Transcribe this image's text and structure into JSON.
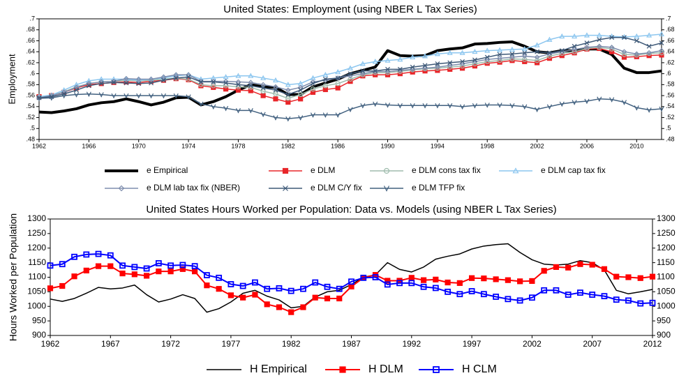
{
  "chart_data": [
    {
      "type": "line",
      "title": "United States: Employment (using NBER L Tax Series)",
      "ylabel": "Employment",
      "x": [
        1962,
        1963,
        1964,
        1965,
        1966,
        1967,
        1968,
        1969,
        1970,
        1971,
        1972,
        1973,
        1974,
        1975,
        1976,
        1977,
        1978,
        1979,
        1980,
        1981,
        1982,
        1983,
        1984,
        1985,
        1986,
        1987,
        1988,
        1989,
        1990,
        1991,
        1992,
        1993,
        1994,
        1995,
        1996,
        1997,
        1998,
        1999,
        2000,
        2001,
        2002,
        2003,
        2004,
        2005,
        2006,
        2007,
        2008,
        2009,
        2010,
        2011,
        2012
      ],
      "xlim": [
        1962,
        2012
      ],
      "xticks": [
        1962,
        1966,
        1970,
        1974,
        1978,
        1982,
        1986,
        1990,
        1994,
        1998,
        2002,
        2006,
        2010
      ],
      "ylim": [
        0.48,
        0.7
      ],
      "yticks": [
        {
          "value": 0.48,
          "label": ".48"
        },
        {
          "value": 0.5,
          "label": ".5"
        },
        {
          "value": 0.52,
          "label": ".52"
        },
        {
          "value": 0.54,
          "label": ".54"
        },
        {
          "value": 0.56,
          "label": ".56"
        },
        {
          "value": 0.58,
          "label": ".58"
        },
        {
          "value": 0.6,
          "label": ".6"
        },
        {
          "value": 0.62,
          "label": ".62"
        },
        {
          "value": 0.64,
          "label": ".64"
        },
        {
          "value": 0.66,
          "label": ".66"
        },
        {
          "value": 0.68,
          "label": ".68"
        },
        {
          "value": 0.7,
          "label": ".7"
        }
      ],
      "legend": "bottom",
      "series": [
        {
          "name": "e Empirical",
          "color": "#000000",
          "marker": "none",
          "linewidth": 4,
          "values": [
            0.53,
            0.529,
            0.532,
            0.536,
            0.543,
            0.547,
            0.549,
            0.554,
            0.549,
            0.543,
            0.548,
            0.556,
            0.557,
            0.543,
            0.549,
            0.558,
            0.57,
            0.58,
            0.576,
            0.575,
            0.562,
            0.562,
            0.576,
            0.583,
            0.59,
            0.6,
            0.606,
            0.612,
            0.642,
            0.633,
            0.632,
            0.633,
            0.642,
            0.645,
            0.647,
            0.654,
            0.655,
            0.657,
            0.658,
            0.65,
            0.64,
            0.638,
            0.642,
            0.642,
            0.645,
            0.645,
            0.635,
            0.61,
            0.602,
            0.602,
            0.605
          ]
        },
        {
          "name": "e DLM",
          "color": "#e8262a",
          "marker": "square",
          "linewidth": 1.5,
          "values": [
            0.558,
            0.56,
            0.566,
            0.574,
            0.58,
            0.582,
            0.584,
            0.585,
            0.584,
            0.586,
            0.588,
            0.591,
            0.589,
            0.578,
            0.575,
            0.572,
            0.57,
            0.569,
            0.56,
            0.554,
            0.548,
            0.554,
            0.566,
            0.571,
            0.574,
            0.586,
            0.596,
            0.598,
            0.598,
            0.6,
            0.603,
            0.605,
            0.606,
            0.608,
            0.61,
            0.614,
            0.619,
            0.621,
            0.624,
            0.622,
            0.62,
            0.628,
            0.633,
            0.638,
            0.645,
            0.646,
            0.64,
            0.63,
            0.631,
            0.633,
            0.634
          ]
        },
        {
          "name": "e DLM cons tax fix",
          "color": "#9fbcad",
          "marker": "circle",
          "linewidth": 1.5,
          "values": [
            0.557,
            0.56,
            0.567,
            0.576,
            0.582,
            0.585,
            0.586,
            0.588,
            0.587,
            0.588,
            0.59,
            0.592,
            0.59,
            0.58,
            0.578,
            0.578,
            0.576,
            0.575,
            0.568,
            0.563,
            0.555,
            0.562,
            0.572,
            0.578,
            0.582,
            0.59,
            0.598,
            0.602,
            0.602,
            0.604,
            0.607,
            0.609,
            0.61,
            0.612,
            0.614,
            0.618,
            0.622,
            0.624,
            0.627,
            0.626,
            0.624,
            0.632,
            0.637,
            0.64,
            0.646,
            0.648,
            0.645,
            0.635,
            0.634,
            0.637,
            0.638
          ]
        },
        {
          "name": "e DLM cap tax fix",
          "color": "#8cc6ef",
          "marker": "triangle",
          "linewidth": 1.5,
          "values": [
            0.558,
            0.561,
            0.57,
            0.58,
            0.587,
            0.59,
            0.59,
            0.59,
            0.588,
            0.59,
            0.592,
            0.596,
            0.598,
            0.59,
            0.592,
            0.594,
            0.596,
            0.596,
            0.592,
            0.588,
            0.58,
            0.582,
            0.592,
            0.598,
            0.603,
            0.61,
            0.618,
            0.622,
            0.624,
            0.626,
            0.63,
            0.632,
            0.636,
            0.638,
            0.638,
            0.64,
            0.642,
            0.643,
            0.644,
            0.645,
            0.652,
            0.662,
            0.668,
            0.668,
            0.67,
            0.67,
            0.668,
            0.667,
            0.668,
            0.67,
            0.672
          ]
        },
        {
          "name": "e DLM lab tax fix (NBER)",
          "color": "#7e8dad",
          "marker": "diamond",
          "linewidth": 1.5,
          "values": [
            0.556,
            0.56,
            0.566,
            0.575,
            0.582,
            0.585,
            0.586,
            0.591,
            0.59,
            0.59,
            0.594,
            0.598,
            0.598,
            0.586,
            0.586,
            0.586,
            0.585,
            0.584,
            0.58,
            0.576,
            0.57,
            0.575,
            0.585,
            0.588,
            0.592,
            0.596,
            0.6,
            0.604,
            0.604,
            0.606,
            0.608,
            0.61,
            0.612,
            0.615,
            0.618,
            0.622,
            0.626,
            0.628,
            0.63,
            0.632,
            0.63,
            0.636,
            0.64,
            0.644,
            0.648,
            0.65,
            0.648,
            0.64,
            0.636,
            0.638,
            0.642
          ]
        },
        {
          "name": "e DLM C/Y fix",
          "color": "#3d5877",
          "marker": "x",
          "linewidth": 1.5,
          "values": [
            0.556,
            0.558,
            0.563,
            0.57,
            0.578,
            0.582,
            0.584,
            0.583,
            0.582,
            0.583,
            0.588,
            0.592,
            0.594,
            0.585,
            0.585,
            0.583,
            0.58,
            0.578,
            0.574,
            0.57,
            0.562,
            0.57,
            0.582,
            0.59,
            0.592,
            0.6,
            0.605,
            0.605,
            0.608,
            0.608,
            0.612,
            0.615,
            0.618,
            0.62,
            0.622,
            0.625,
            0.63,
            0.635,
            0.636,
            0.638,
            0.64,
            0.638,
            0.642,
            0.65,
            0.656,
            0.662,
            0.666,
            0.666,
            0.66,
            0.65,
            0.656
          ]
        },
        {
          "name": "e DLM TFP fix",
          "color": "#41607f",
          "marker": "v",
          "linewidth": 1.5,
          "values": [
            0.555,
            0.556,
            0.56,
            0.562,
            0.563,
            0.562,
            0.56,
            0.56,
            0.56,
            0.56,
            0.56,
            0.56,
            0.558,
            0.545,
            0.54,
            0.537,
            0.533,
            0.533,
            0.526,
            0.52,
            0.518,
            0.52,
            0.525,
            0.525,
            0.525,
            0.535,
            0.542,
            0.545,
            0.543,
            0.542,
            0.542,
            0.542,
            0.542,
            0.542,
            0.54,
            0.542,
            0.543,
            0.543,
            0.542,
            0.54,
            0.535,
            0.54,
            0.545,
            0.548,
            0.55,
            0.554,
            0.553,
            0.548,
            0.538,
            0.534,
            0.536
          ]
        }
      ]
    },
    {
      "type": "line",
      "title": "United States Hours Worked per Population: Data vs. Models (using NBER L Tax Series)",
      "ylabel": "Hours Worked per Population",
      "x": [
        1962,
        1963,
        1964,
        1965,
        1966,
        1967,
        1968,
        1969,
        1970,
        1971,
        1972,
        1973,
        1974,
        1975,
        1976,
        1977,
        1978,
        1979,
        1980,
        1981,
        1982,
        1983,
        1984,
        1985,
        1986,
        1987,
        1988,
        1989,
        1990,
        1991,
        1992,
        1993,
        1994,
        1995,
        1996,
        1997,
        1998,
        1999,
        2000,
        2001,
        2002,
        2003,
        2004,
        2005,
        2006,
        2007,
        2008,
        2009,
        2010,
        2011,
        2012
      ],
      "xlim": [
        1962,
        2012
      ],
      "xticks": [
        1962,
        1967,
        1972,
        1977,
        1982,
        1987,
        1992,
        1997,
        2002,
        2007,
        2012
      ],
      "ylim": [
        900,
        1300
      ],
      "yticks": [
        900,
        950,
        1000,
        1050,
        1100,
        1150,
        1200,
        1250,
        1300
      ],
      "legend": "bottom",
      "series": [
        {
          "name": "H Empirical",
          "color": "#000000",
          "marker": "none",
          "linewidth": 1.5,
          "values": [
            1025,
            1017,
            1027,
            1045,
            1065,
            1060,
            1063,
            1073,
            1040,
            1015,
            1025,
            1040,
            1027,
            980,
            992,
            1015,
            1045,
            1055,
            1035,
            1022,
            995,
            1000,
            1032,
            1050,
            1055,
            1075,
            1100,
            1108,
            1150,
            1127,
            1118,
            1135,
            1162,
            1172,
            1180,
            1197,
            1207,
            1212,
            1215,
            1185,
            1160,
            1145,
            1142,
            1145,
            1157,
            1150,
            1125,
            1055,
            1043,
            1050,
            1058
          ]
        },
        {
          "name": "H DLM",
          "color": "#ff0000",
          "marker": "square",
          "linewidth": 2,
          "values": [
            1062,
            1070,
            1103,
            1123,
            1138,
            1138,
            1113,
            1110,
            1105,
            1120,
            1120,
            1128,
            1120,
            1072,
            1060,
            1038,
            1030,
            1040,
            1007,
            997,
            980,
            997,
            1030,
            1027,
            1027,
            1068,
            1098,
            1108,
            1088,
            1088,
            1098,
            1090,
            1092,
            1082,
            1080,
            1097,
            1096,
            1093,
            1090,
            1086,
            1087,
            1122,
            1135,
            1133,
            1145,
            1143,
            1128,
            1102,
            1100,
            1097,
            1102
          ]
        },
        {
          "name": "H CLM",
          "color": "#0000ff",
          "marker": "square-open",
          "linewidth": 2,
          "values": [
            1140,
            1145,
            1170,
            1178,
            1180,
            1175,
            1140,
            1135,
            1130,
            1148,
            1140,
            1142,
            1138,
            1107,
            1098,
            1076,
            1070,
            1082,
            1060,
            1062,
            1053,
            1060,
            1082,
            1067,
            1060,
            1085,
            1098,
            1100,
            1075,
            1080,
            1080,
            1067,
            1063,
            1050,
            1042,
            1052,
            1042,
            1033,
            1025,
            1020,
            1030,
            1055,
            1055,
            1040,
            1047,
            1040,
            1035,
            1023,
            1020,
            1010,
            1012
          ]
        }
      ]
    }
  ]
}
